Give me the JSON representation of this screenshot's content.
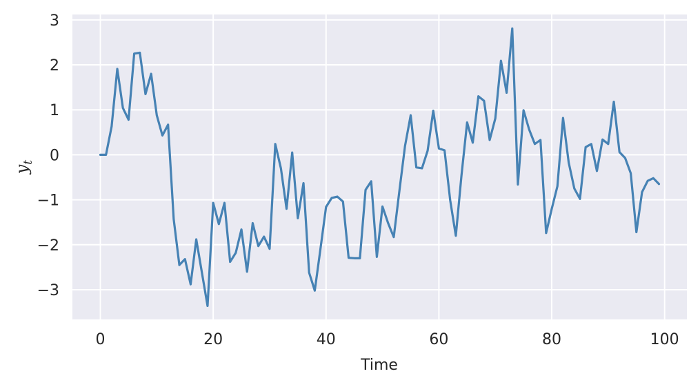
{
  "chart_data": {
    "type": "line",
    "xlabel": "Time",
    "ylabel": "y",
    "ylabel_subscript": "t",
    "xlim": [
      -4.95,
      103.95
    ],
    "ylim": [
      -3.66,
      3.12
    ],
    "xticks": [
      0,
      20,
      40,
      60,
      80,
      100
    ],
    "yticks": [
      -3,
      -2,
      -1,
      0,
      1,
      2,
      3
    ],
    "xtick_labels": [
      "0",
      "20",
      "40",
      "60",
      "80",
      "100"
    ],
    "ytick_labels": [
      "−3",
      "−2",
      "−1",
      "0",
      "1",
      "2",
      "3"
    ],
    "grid": true,
    "background": "#eaeaf2",
    "grid_color": "#ffffff",
    "line_color": "#4682b4",
    "series": [
      {
        "x": [
          0,
          1,
          2,
          3,
          4,
          5,
          6,
          7,
          8,
          9,
          10,
          11,
          12,
          13,
          14,
          15,
          16,
          17,
          18,
          19,
          20,
          21,
          22,
          23,
          24,
          25,
          26,
          27,
          28,
          29,
          30,
          31,
          32,
          33,
          34,
          35,
          36,
          37,
          38,
          39,
          40,
          41,
          42,
          43,
          44,
          45,
          46,
          47,
          48,
          49,
          50,
          51,
          52,
          53,
          54,
          55,
          56,
          57,
          58,
          59,
          60,
          61,
          62,
          63,
          64,
          65,
          66,
          67,
          68,
          69,
          70,
          71,
          72,
          73,
          74,
          75,
          76,
          77,
          78,
          79,
          80,
          81,
          82,
          83,
          84,
          85,
          86,
          87,
          88,
          89,
          90,
          91,
          92,
          93,
          94,
          95,
          96,
          97,
          98,
          99
        ],
        "values": [
          0.0,
          0.0,
          0.63,
          1.91,
          1.04,
          0.78,
          2.25,
          2.27,
          1.35,
          1.8,
          0.88,
          0.43,
          0.67,
          -1.43,
          -2.45,
          -2.32,
          -2.88,
          -1.88,
          -2.62,
          -3.36,
          -1.07,
          -1.54,
          -1.07,
          -2.38,
          -2.18,
          -1.66,
          -2.6,
          -1.52,
          -2.03,
          -1.82,
          -2.09,
          0.24,
          -0.3,
          -1.2,
          0.05,
          -1.41,
          -0.63,
          -2.62,
          -3.02,
          -2.1,
          -1.16,
          -0.96,
          -0.93,
          -1.04,
          -2.29,
          -2.3,
          -2.3,
          -0.78,
          -0.59,
          -2.27,
          -1.15,
          -1.52,
          -1.83,
          -0.8,
          0.2,
          0.88,
          -0.28,
          -0.3,
          0.09,
          0.98,
          0.14,
          0.1,
          -1.01,
          -1.8,
          -0.46,
          0.72,
          0.27,
          1.3,
          1.2,
          0.33,
          0.81,
          2.09,
          1.38,
          2.81,
          -0.66,
          0.99,
          0.56,
          0.24,
          0.33,
          -1.74,
          -1.2,
          -0.7,
          0.82,
          -0.17,
          -0.75,
          -0.98,
          0.17,
          0.24,
          -0.36,
          0.34,
          0.24,
          1.18,
          0.06,
          -0.07,
          -0.41,
          -1.72,
          -0.83,
          -0.58,
          -0.52,
          -0.65
        ]
      }
    ]
  }
}
